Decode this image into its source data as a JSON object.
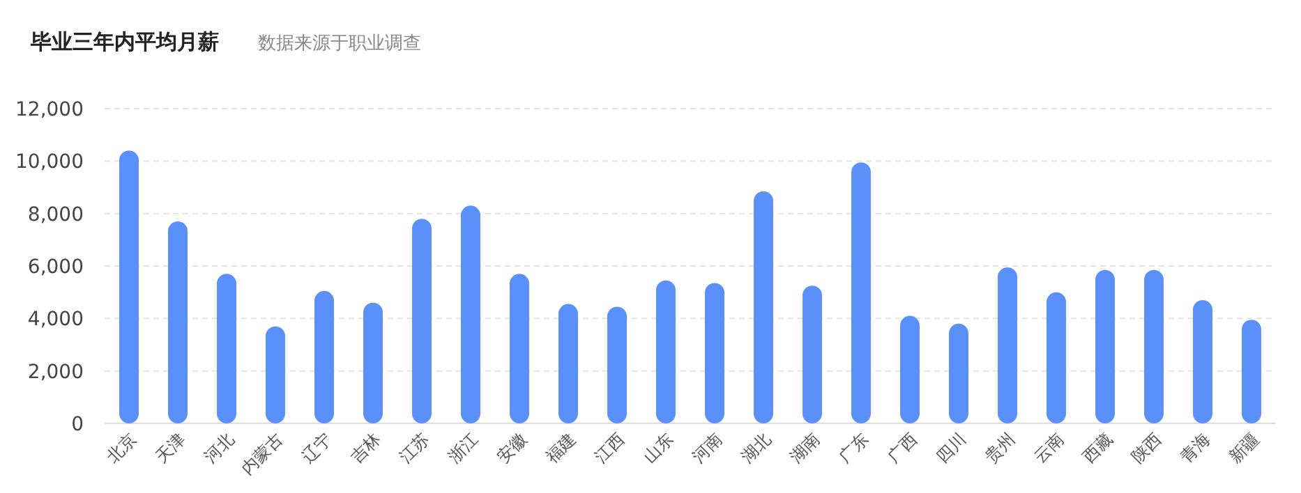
{
  "chart_data": {
    "type": "bar",
    "title": "毕业三年内平均月薪",
    "subtitle": "数据来源于职业调查",
    "categories": [
      "北京",
      "天津",
      "河北",
      "内蒙古",
      "辽宁",
      "吉林",
      "江苏",
      "浙江",
      "安徽",
      "福建",
      "江西",
      "山东",
      "河南",
      "湖北",
      "湖南",
      "广东",
      "广西",
      "四川",
      "贵州",
      "云南",
      "西藏",
      "陕西",
      "青海",
      "新疆"
    ],
    "values": [
      10400,
      7700,
      5700,
      3700,
      5050,
      4600,
      7800,
      8300,
      5700,
      4550,
      4450,
      5450,
      5350,
      8850,
      5250,
      9950,
      4100,
      3800,
      5950,
      5000,
      5850,
      5850,
      4700,
      3950
    ],
    "color": "#5b8ff9",
    "ylim": [
      0,
      12000
    ],
    "yticks": [
      0,
      {
        "value": 2000,
        "label": "2,000"
      },
      {
        "value": 4000,
        "label": "4,000"
      },
      {
        "value": 6000,
        "label": "6,000"
      },
      {
        "value": 8000,
        "label": "8,000"
      },
      {
        "value": 10000,
        "label": "10,000"
      },
      {
        "value": 12000,
        "label": "12,000"
      }
    ],
    "grid": "y"
  }
}
